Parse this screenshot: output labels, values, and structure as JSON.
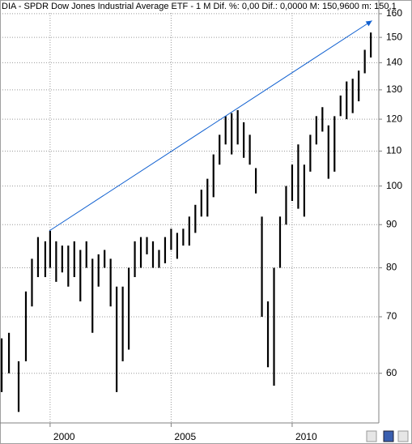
{
  "chart_data": {
    "type": "range_bar",
    "title": "DIA - SPDR Dow Jones Industrial Average ETF - 1 M  Dif. %: 0,00  Dif.: 0,0000  M: 150,9600  m: 150,1",
    "log_scale": true,
    "grid": true,
    "color": "#000000",
    "xlim": [
      1997.93,
      2013.58
    ],
    "xticks": [
      2000,
      2005,
      2010
    ],
    "ylim": [
      52.4,
      166.1
    ],
    "yticks": [
      60,
      70,
      80,
      90,
      100,
      110,
      120,
      130,
      140,
      150,
      160
    ],
    "x": [
      1998.0,
      1998.3,
      1998.7,
      1999.0,
      1999.25,
      1999.5,
      1999.8,
      2000.0,
      2000.25,
      2000.5,
      2000.75,
      2001.0,
      2001.25,
      2001.5,
      2001.75,
      2002.0,
      2002.25,
      2002.5,
      2002.75,
      2003.0,
      2003.25,
      2003.5,
      2003.75,
      2004.0,
      2004.25,
      2004.5,
      2004.75,
      2005.0,
      2005.25,
      2005.5,
      2005.75,
      2006.0,
      2006.25,
      2006.5,
      2006.75,
      2007.0,
      2007.25,
      2007.5,
      2007.75,
      2008.0,
      2008.25,
      2008.5,
      2008.75,
      2009.0,
      2009.25,
      2009.5,
      2009.75,
      2010.0,
      2010.25,
      2010.5,
      2010.75,
      2011.0,
      2011.25,
      2011.5,
      2011.75,
      2012.0,
      2012.25,
      2012.5,
      2012.75,
      2013.0,
      2013.25
    ],
    "high": [
      66,
      67,
      62,
      75,
      82,
      87,
      86,
      88.5,
      86,
      85,
      85,
      86,
      84,
      86,
      82,
      83,
      84,
      82,
      76,
      76,
      80,
      86,
      87,
      87,
      86,
      84,
      87,
      89,
      88,
      89,
      92,
      95,
      99,
      102,
      109,
      115,
      121,
      122,
      123,
      119,
      115,
      105,
      92,
      73,
      80,
      92,
      100,
      106,
      112,
      106,
      115,
      121,
      124,
      118,
      121,
      128,
      133,
      134,
      137,
      145,
      152
    ],
    "low": [
      57,
      60,
      54,
      62,
      72,
      78,
      78,
      80,
      77,
      79,
      76,
      78,
      73,
      80,
      67,
      76,
      80,
      72,
      57,
      62,
      64,
      78,
      80,
      83,
      80,
      80,
      81,
      84,
      82,
      85,
      85,
      88,
      92,
      92,
      97,
      106,
      112,
      109,
      112,
      108,
      106,
      98,
      70,
      61,
      58,
      80,
      90,
      96,
      94,
      92,
      104,
      112,
      116,
      102,
      104,
      121,
      120,
      122,
      126,
      136,
      142
    ],
    "trendline": {
      "color": "#1060d0",
      "x": [
        1999.97,
        2013.3
      ],
      "y": [
        88.5,
        157
      ]
    }
  }
}
